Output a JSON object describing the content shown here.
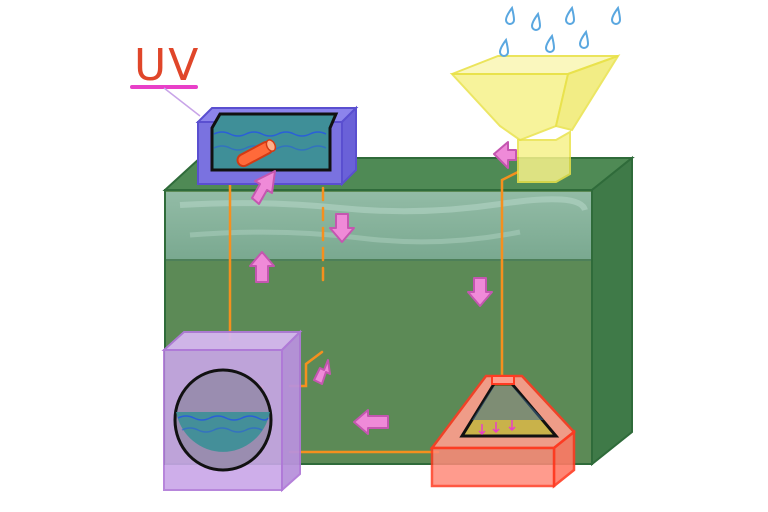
{
  "labels": {
    "uv": "UV"
  },
  "colors": {
    "tank": "#5f8f5a",
    "tank_edge": "#2f6b3a",
    "tank_water_top": "#8fb8a5",
    "uv_unit": "#7a72e0",
    "filter_unit": "#c9a6e8",
    "filter_edge": "#b07ad8",
    "collector": "#ff8a7a",
    "collector_edge": "#ff3b22",
    "funnel": "#f5f07a",
    "funnel_edge": "#e9e24a",
    "water": "#3f8f98",
    "pipe": "#f5901e",
    "arrow": "#ef8ad8",
    "arrow_edge": "#c456b0",
    "rain": "#5aa7e0",
    "uv_pen": "#e0462a",
    "uv_underline": "#e83fc8"
  },
  "icons": {
    "rain": "raindrop-icon",
    "flow": "flow-arrow-icon"
  }
}
